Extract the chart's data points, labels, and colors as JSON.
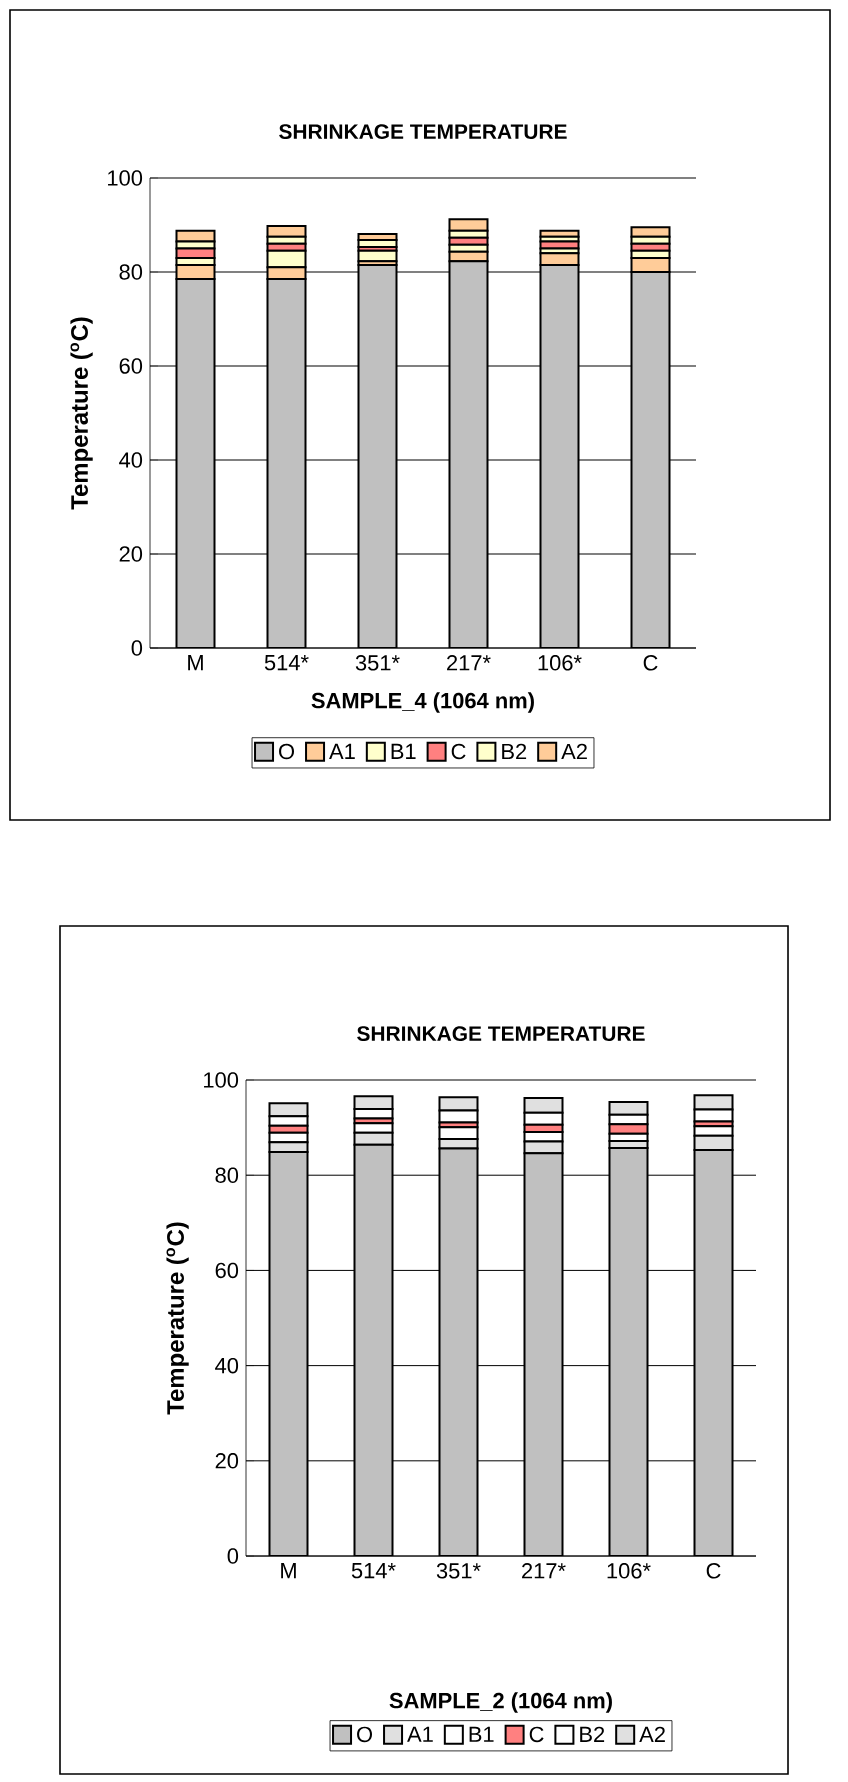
{
  "chart_data": [
    {
      "type": "bar",
      "stacked": true,
      "title": "SHRINKAGE TEMPERATURE",
      "xlabel": "SAMPLE_4 (1064 nm)",
      "ylabel": "Temperature ($^{o}$C)",
      "categories": [
        "M",
        "514*",
        "351*",
        "217*",
        "106*",
        "C"
      ],
      "ylim": [
        0,
        100
      ],
      "yticks": [
        0,
        20,
        40,
        60,
        80,
        100
      ],
      "grid": "y",
      "legend": "bottom",
      "series": [
        {
          "name": "O",
          "color": "#c0c0c0",
          "values": [
            78.5,
            78.5,
            81.5,
            82.3,
            81.5,
            80
          ]
        },
        {
          "name": "A1",
          "color": "#ffcc99",
          "values": [
            3,
            2.5,
            0.8,
            2,
            2.5,
            3
          ]
        },
        {
          "name": "B1",
          "color": "#ffffcc",
          "values": [
            1.5,
            3.5,
            2.2,
            1.5,
            1,
            1.5
          ]
        },
        {
          "name": "C",
          "color": "#ff8080",
          "values": [
            2,
            1.5,
            0.8,
            1.5,
            1.5,
            1.5
          ]
        },
        {
          "name": "B2",
          "color": "#ffffcc",
          "values": [
            1.5,
            1.5,
            1.5,
            1.5,
            1,
            1.5
          ]
        },
        {
          "name": "A2",
          "color": "#ffcc99",
          "values": [
            2.3,
            2.3,
            1.3,
            2.4,
            1.3,
            2
          ]
        }
      ]
    },
    {
      "type": "bar",
      "stacked": true,
      "title": "SHRINKAGE TEMPERATURE",
      "xlabel": "SAMPLE_2 (1064 nm)",
      "ylabel": "Temperature ($^{o}$C)",
      "categories": [
        "M",
        "514*",
        "351*",
        "217*",
        "106*",
        "C"
      ],
      "ylim": [
        0,
        100
      ],
      "yticks": [
        0,
        20,
        40,
        60,
        80,
        100
      ],
      "grid": "y",
      "legend": "bottom",
      "series": [
        {
          "name": "O",
          "color": "#c0c0c0",
          "values": [
            84.9,
            86.4,
            85.6,
            84.6,
            85.7,
            85.3
          ]
        },
        {
          "name": "A1",
          "color": "#e0e0e0",
          "values": [
            2,
            2.5,
            2,
            2.5,
            1.5,
            3
          ]
        },
        {
          "name": "B1",
          "color": "#ffffff",
          "values": [
            2,
            2,
            2.5,
            2,
            1.5,
            2
          ]
        },
        {
          "name": "C",
          "color": "#ff8080",
          "values": [
            1.5,
            1,
            1,
            1.5,
            2,
            1
          ]
        },
        {
          "name": "B2",
          "color": "#ffffff",
          "values": [
            2,
            2,
            2.5,
            2.5,
            2,
            2.5
          ]
        },
        {
          "name": "A2",
          "color": "#e0e0e0",
          "values": [
            2.7,
            2.7,
            2.8,
            3.1,
            2.7,
            3
          ]
        }
      ]
    }
  ]
}
